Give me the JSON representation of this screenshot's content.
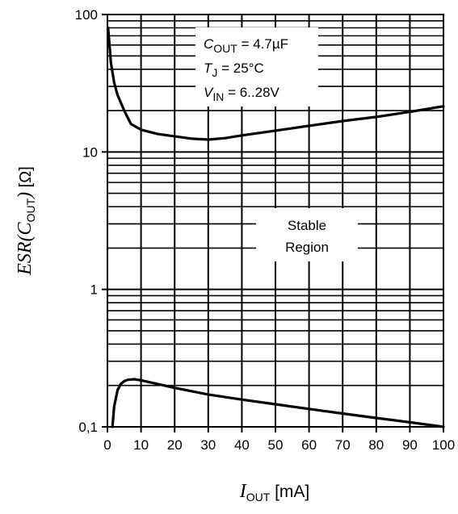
{
  "chart_data": {
    "type": "line",
    "x_axis": {
      "label_symbol": "I",
      "label_subscript": "OUT",
      "label_unit": "[mA]",
      "range": [
        0,
        100
      ],
      "ticks": [
        0,
        10,
        20,
        30,
        40,
        50,
        60,
        70,
        80,
        90,
        100
      ],
      "tick_labels": [
        "0",
        "10",
        "20",
        "30",
        "40",
        "50",
        "60",
        "70",
        "80",
        "90",
        "100"
      ]
    },
    "y_axis": {
      "label_main": "ESR(C",
      "label_subscript": "OUT",
      "label_close": ")",
      "label_unit": "[Ω]",
      "scale": "log",
      "range": [
        0.1,
        100
      ],
      "ticks": [
        0.1,
        1,
        10,
        100
      ],
      "tick_labels": [
        "0,1",
        "1",
        "10",
        "100"
      ]
    },
    "grid": true,
    "series": [
      {
        "role": "upper-boundary",
        "x": [
          0.2,
          0.5,
          1,
          2,
          3,
          5,
          7,
          10,
          15,
          20,
          25,
          30,
          35,
          40,
          50,
          60,
          70,
          80,
          90,
          100
        ],
        "y": [
          80,
          65,
          45,
          32,
          26,
          20,
          16,
          14.5,
          13.5,
          13,
          12.5,
          12.3,
          12.6,
          13.2,
          14.3,
          15.5,
          16.8,
          18,
          19.6,
          21.5
        ]
      },
      {
        "role": "lower-boundary",
        "x": [
          1.5,
          2,
          3,
          4,
          5,
          6,
          8,
          10,
          15,
          20,
          30,
          40,
          50,
          60,
          70,
          80,
          90,
          100
        ],
        "y": [
          0.1,
          0.14,
          0.185,
          0.205,
          0.215,
          0.22,
          0.222,
          0.218,
          0.205,
          0.192,
          0.172,
          0.158,
          0.146,
          0.135,
          0.125,
          0.116,
          0.108,
          0.1
        ]
      }
    ],
    "annotations": {
      "conditions": [
        {
          "symbol": "C",
          "subscript": "OUT",
          "value": " = 4.7µF"
        },
        {
          "symbol": "T",
          "subscript": "J",
          "value": " = 25°C"
        },
        {
          "symbol": "V",
          "subscript": "IN",
          "value": " = 6..28V"
        }
      ],
      "region_line1": "Stable",
      "region_line2": "Region"
    }
  }
}
